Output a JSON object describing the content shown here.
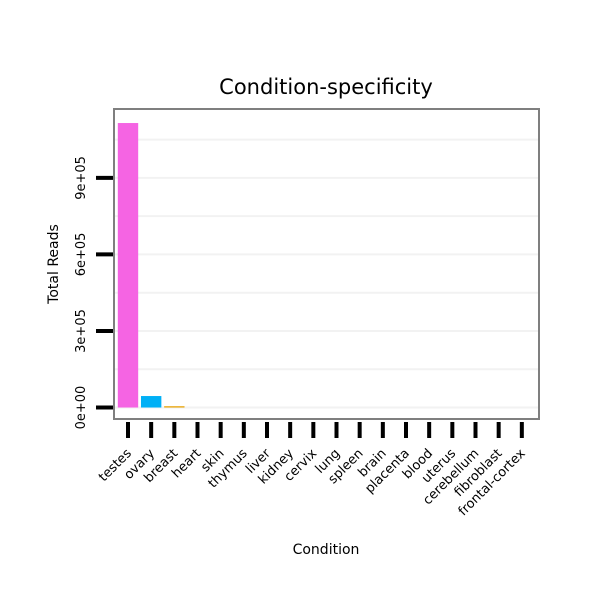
{
  "chart_data": {
    "type": "bar",
    "title": "Condition-specificity",
    "xlabel": "Condition",
    "ylabel": "Total Reads",
    "categories": [
      "testes",
      "ovary",
      "breast",
      "heart",
      "skin",
      "thymus",
      "liver",
      "kidney",
      "cervix",
      "lung",
      "spleen",
      "brain",
      "placenta",
      "blood",
      "uterus",
      "cerebellum",
      "fibroblast",
      "frontal-cortex"
    ],
    "values": [
      1115000,
      45000,
      5000,
      0,
      0,
      0,
      0,
      0,
      0,
      0,
      0,
      0,
      0,
      0,
      0,
      0,
      0,
      0
    ],
    "bar_colors": [
      "#f564e3",
      "#00b0f6",
      "#e7a000",
      null,
      null,
      null,
      null,
      null,
      null,
      null,
      null,
      null,
      null,
      null,
      null,
      null,
      null,
      null
    ],
    "yticks": [
      0,
      300000,
      600000,
      900000
    ],
    "ytick_labels": [
      "0e+00",
      "3e+05",
      "6e+05",
      "9e+05"
    ],
    "ylim": [
      -45000,
      1170000
    ],
    "grid": true,
    "legend": "none"
  }
}
